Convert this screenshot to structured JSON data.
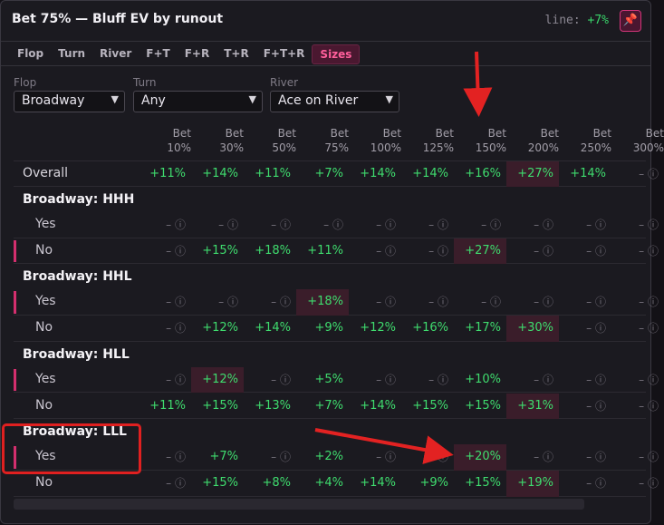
{
  "header": {
    "title": "Bet 75% — Bluff EV by runout",
    "line_label": "line:",
    "line_value": "+7%"
  },
  "tabs": [
    "Flop",
    "Turn",
    "River",
    "F+T",
    "F+R",
    "T+R",
    "F+T+R",
    "Sizes"
  ],
  "active_tab": "Sizes",
  "filters": [
    {
      "label": "Flop",
      "value": "Broadway"
    },
    {
      "label": "Turn",
      "value": "Any"
    },
    {
      "label": "River",
      "value": "Ace on River"
    }
  ],
  "columns": [
    [
      "Bet",
      "10%"
    ],
    [
      "Bet",
      "30%"
    ],
    [
      "Bet",
      "50%"
    ],
    [
      "Bet",
      "75%"
    ],
    [
      "Bet",
      "100%"
    ],
    [
      "Bet",
      "125%"
    ],
    [
      "Bet",
      "150%"
    ],
    [
      "Bet",
      "200%"
    ],
    [
      "Bet",
      "250%"
    ],
    [
      "Bet",
      "300%"
    ]
  ],
  "na_text": "– ⓘ",
  "rows": [
    {
      "type": "overall",
      "label": "Overall",
      "cells": [
        "+11%",
        "+14%",
        "+11%",
        "+7%",
        "+14%",
        "+14%",
        "+16%",
        "+27%",
        "+14%",
        "– ⓘ"
      ],
      "hi": [
        7
      ]
    },
    {
      "type": "group",
      "label": "Broadway: HHH"
    },
    {
      "type": "sub",
      "label": "Yes",
      "mark": false,
      "cells": [
        "",
        "",
        "",
        "",
        "",
        "",
        "",
        "",
        "",
        ""
      ],
      "hi": []
    },
    {
      "type": "sub",
      "label": "No",
      "mark": true,
      "cells": [
        "",
        "+15%",
        "+18%",
        "+11%",
        "",
        "",
        "+27%",
        "",
        "",
        ""
      ],
      "hi": [
        6
      ]
    },
    {
      "type": "group",
      "label": "Broadway: HHL"
    },
    {
      "type": "sub",
      "label": "Yes",
      "mark": true,
      "cells": [
        "",
        "",
        "",
        "+18%",
        "",
        "",
        "",
        "",
        "",
        ""
      ],
      "hi": [
        3
      ]
    },
    {
      "type": "sub",
      "label": "No",
      "mark": false,
      "cells": [
        "",
        "+12%",
        "+14%",
        "+9%",
        "+12%",
        "+16%",
        "+17%",
        "+30%",
        "",
        ""
      ],
      "hi": [
        7
      ]
    },
    {
      "type": "group",
      "label": "Broadway: HLL"
    },
    {
      "type": "sub",
      "label": "Yes",
      "mark": true,
      "cells": [
        "",
        "+12%",
        "",
        "+5%",
        "",
        "",
        "+10%",
        "",
        "",
        ""
      ],
      "hi": [
        1
      ]
    },
    {
      "type": "sub",
      "label": "No",
      "mark": false,
      "cells": [
        "+11%",
        "+15%",
        "+13%",
        "+7%",
        "+14%",
        "+15%",
        "+15%",
        "+31%",
        "",
        ""
      ],
      "hi": [
        7
      ]
    },
    {
      "type": "group",
      "label": "Broadway: LLL"
    },
    {
      "type": "sub",
      "label": "Yes",
      "mark": true,
      "cells": [
        "",
        "+7%",
        "",
        "+2%",
        "",
        "",
        "+20%",
        "",
        "",
        ""
      ],
      "hi": [
        6
      ]
    },
    {
      "type": "sub",
      "label": "No",
      "mark": false,
      "cells": [
        "",
        "+15%",
        "+8%",
        "+4%",
        "+14%",
        "+9%",
        "+15%",
        "+19%",
        "",
        ""
      ],
      "hi": [
        7
      ]
    }
  ],
  "annotation_colors": {
    "arrow": "#e32222",
    "highlight": "#3a1d2a",
    "positive": "#3fdc6e",
    "accent": "#ff4b8e"
  }
}
